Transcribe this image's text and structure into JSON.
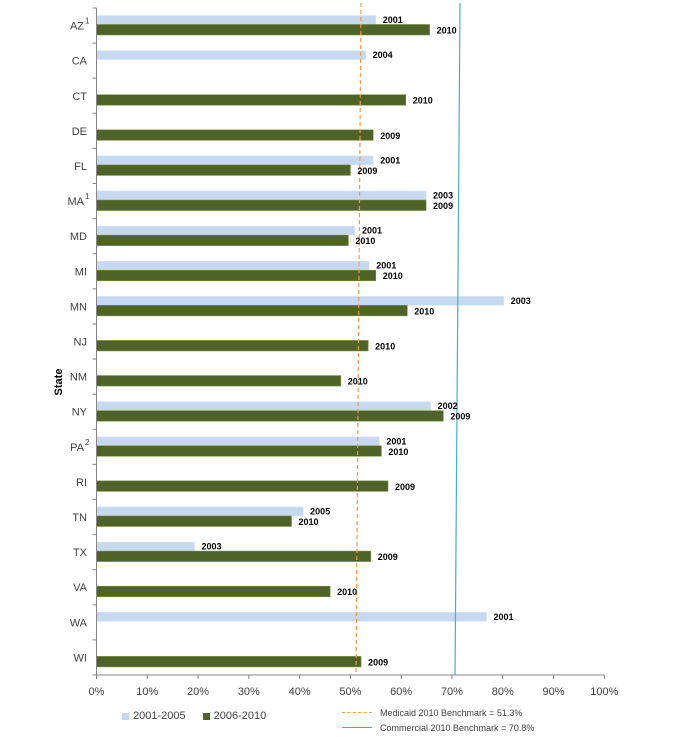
{
  "chart_data": {
    "type": "bar",
    "orientation": "horizontal",
    "title": "",
    "xlabel": "",
    "ylabel": "State",
    "xlim": [
      0,
      100
    ],
    "x_ticks": [
      "0%",
      "10%",
      "20%",
      "30%",
      "40%",
      "50%",
      "60%",
      "70%",
      "80%",
      "90%",
      "100%"
    ],
    "grid": false,
    "legend_position": "bottom",
    "categories": [
      "AZ",
      "CA",
      "CT",
      "DE",
      "FL",
      "MA",
      "MD",
      "MI",
      "MN",
      "NJ",
      "NM",
      "NY",
      "PA",
      "RI",
      "TN",
      "TX",
      "VA",
      "WA",
      "WI"
    ],
    "category_superscripts": [
      "1",
      "",
      "",
      "",
      "",
      "1",
      "",
      "",
      "",
      "",
      "",
      "",
      "2",
      "",
      "",
      "",
      "",
      "",
      ""
    ],
    "series": [
      {
        "name": "2001-2005",
        "color": "#c6d9f1",
        "values": [
          55.0,
          53.0,
          null,
          null,
          54.5,
          64.9,
          50.9,
          53.7,
          80.2,
          null,
          null,
          65.8,
          55.7,
          null,
          40.7,
          19.3,
          null,
          76.8,
          null
        ],
        "labels": [
          "2001",
          "2004",
          null,
          null,
          "2001",
          "2003",
          "2001",
          "2001",
          "2003",
          null,
          null,
          "2002",
          "2001",
          null,
          "2005",
          "2003",
          null,
          "2001",
          null
        ]
      },
      {
        "name": "2006-2010",
        "color": "#4f6228",
        "values": [
          65.6,
          null,
          60.9,
          54.5,
          50.0,
          64.9,
          49.6,
          55.0,
          61.2,
          53.5,
          48.1,
          68.3,
          56.1,
          57.4,
          38.4,
          54.0,
          46.0,
          null,
          52.1
        ],
        "labels": [
          "2010",
          null,
          "2010",
          "2009",
          "2009",
          "2009",
          "2010",
          "2010",
          "2010",
          "2010",
          "2010",
          "2009",
          "2010",
          "2009",
          "2010",
          "2009",
          "2010",
          null,
          "2009"
        ]
      }
    ],
    "benchmarks": [
      {
        "name": "Medicaid 2010 Benchmark = 51.3%",
        "value": 51.3,
        "color": "#f79646",
        "style": "dashed"
      },
      {
        "name": "Commercial 2010 Benchmark = 70.8%",
        "value": 70.8,
        "color": "#4bacc6",
        "style": "solid"
      }
    ]
  }
}
